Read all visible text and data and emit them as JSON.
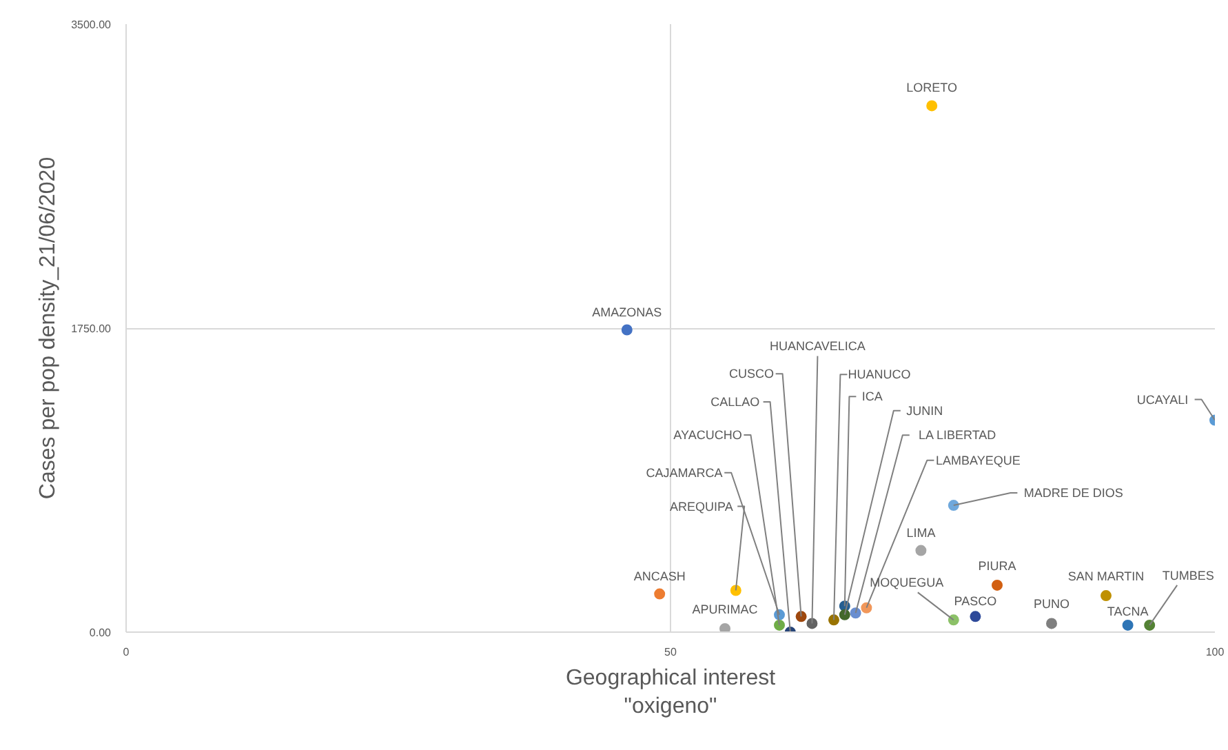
{
  "chart_data": {
    "type": "scatter",
    "xlabel": "Geographical interest\n\"oxigeno\"",
    "ylabel": "Cases per pop density_21/06/2020",
    "xlim": [
      0,
      100
    ],
    "xticks": [
      0,
      50,
      100
    ],
    "ylim": [
      0,
      3500
    ],
    "yticks": [
      {
        "value": 0,
        "label": "0.00"
      },
      {
        "value": 1750,
        "label": "1750.00"
      },
      {
        "value": 3500,
        "label": "3500.00"
      }
    ],
    "grid": true,
    "marker": "circle",
    "series": [
      {
        "name": "AMAZONAS",
        "color": "#4472c4",
        "x": [
          46
        ],
        "values": [
          1740
        ]
      },
      {
        "name": "LORETO",
        "color": "#ffc000",
        "x": [
          74
        ],
        "values": [
          3030
        ]
      },
      {
        "name": "UCAYALI",
        "color": "#5b9bd5",
        "x": [
          100
        ],
        "values": [
          1220
        ]
      },
      {
        "name": "MADRE DE DIOS",
        "color": "#6fa8dc",
        "x": [
          76
        ],
        "values": [
          730
        ]
      },
      {
        "name": "LIMA",
        "color": "#a5a5a5",
        "x": [
          73
        ],
        "values": [
          470
        ]
      },
      {
        "name": "ANCASH",
        "color": "#ed7d31",
        "x": [
          49
        ],
        "values": [
          220
        ]
      },
      {
        "name": "AREQUIPA",
        "color": "#ffc000",
        "x": [
          56
        ],
        "values": [
          240
        ]
      },
      {
        "name": "APURIMAC",
        "color": "#a5a5a5",
        "x": [
          55
        ],
        "values": [
          20
        ]
      },
      {
        "name": "CAJAMARCA",
        "color": "#5b9bd5",
        "x": [
          60
        ],
        "values": [
          100
        ]
      },
      {
        "name": "AYACUCHO",
        "color": "#70ad47",
        "x": [
          60
        ],
        "values": [
          40
        ]
      },
      {
        "name": "CALLAO",
        "color": "#264478",
        "x": [
          61
        ],
        "values": [
          0
        ]
      },
      {
        "name": "CUSCO",
        "color": "#9e480e",
        "x": [
          62
        ],
        "values": [
          90
        ]
      },
      {
        "name": "HUANCAVELICA",
        "color": "#636363",
        "x": [
          63
        ],
        "values": [
          50
        ]
      },
      {
        "name": "HUANUCO",
        "color": "#997300",
        "x": [
          65
        ],
        "values": [
          70
        ]
      },
      {
        "name": "ICA",
        "color": "#255e91",
        "x": [
          66
        ],
        "values": [
          150
        ]
      },
      {
        "name": "JUNIN",
        "color": "#43682b",
        "x": [
          66
        ],
        "values": [
          100
        ]
      },
      {
        "name": "LA LIBERTAD",
        "color": "#698ed0",
        "x": [
          67
        ],
        "values": [
          110
        ]
      },
      {
        "name": "LAMBAYEQUE",
        "color": "#f1975a",
        "x": [
          68
        ],
        "values": [
          140
        ]
      },
      {
        "name": "MOQUEGUA",
        "color": "#8cc168",
        "x": [
          76
        ],
        "values": [
          70
        ]
      },
      {
        "name": "PASCO",
        "color": "#2e4a9a",
        "x": [
          78
        ],
        "values": [
          90
        ]
      },
      {
        "name": "PIURA",
        "color": "#d26012",
        "x": [
          80
        ],
        "values": [
          270
        ]
      },
      {
        "name": "PUNO",
        "color": "#7f7f7f",
        "x": [
          85
        ],
        "values": [
          50
        ]
      },
      {
        "name": "SAN MARTIN",
        "color": "#bf9000",
        "x": [
          90
        ],
        "values": [
          210
        ]
      },
      {
        "name": "TACNA",
        "color": "#2e75b6",
        "x": [
          92
        ],
        "values": [
          40
        ]
      },
      {
        "name": "TUMBES",
        "color": "#548235",
        "x": [
          94
        ],
        "values": [
          40
        ]
      }
    ]
  }
}
